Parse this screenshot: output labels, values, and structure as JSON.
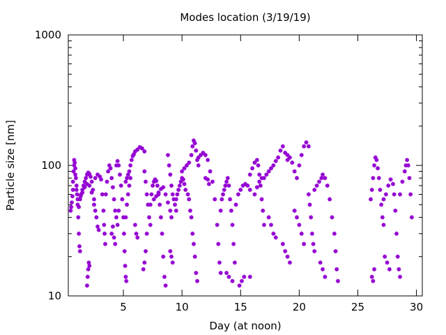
{
  "chart_data": {
    "type": "scatter",
    "title": "Modes location (3/19/19)",
    "xlabel": "Day (at noon)",
    "ylabel": "Particle size [nm]",
    "xlim": [
      0.3,
      30.5
    ],
    "ylim": [
      10,
      1000
    ],
    "yscale": "log",
    "grid": false,
    "legend": "none",
    "marker": "star",
    "color": "#9400d3",
    "x_ticks": [
      5,
      10,
      15,
      20,
      25,
      30
    ],
    "x_tick_labels": [
      "5",
      "10",
      "15",
      "20",
      "25",
      "30"
    ],
    "y_ticks": [
      10,
      100,
      1000
    ],
    "y_tick_labels": [
      "10",
      "100",
      "1000"
    ],
    "series": [
      {
        "points": [
          [
            0.5,
            45
          ],
          [
            0.6,
            52
          ],
          [
            0.7,
            65
          ],
          [
            0.75,
            90
          ],
          [
            0.8,
            110
          ],
          [
            0.85,
            105
          ],
          [
            0.9,
            95
          ],
          [
            0.95,
            80
          ],
          [
            1.0,
            70
          ],
          [
            1.05,
            60
          ],
          [
            1.1,
            50
          ],
          [
            1.15,
            40
          ],
          [
            1.2,
            30
          ],
          [
            1.25,
            24
          ],
          [
            1.3,
            22
          ],
          [
            0.55,
            48
          ],
          [
            0.65,
            58
          ],
          [
            0.7,
            75
          ],
          [
            0.8,
            100
          ],
          [
            0.9,
            85
          ],
          [
            1.0,
            65
          ],
          [
            1.1,
            55
          ],
          [
            1.2,
            48
          ],
          [
            1.3,
            55
          ],
          [
            1.4,
            60
          ],
          [
            1.5,
            65
          ],
          [
            1.6,
            70
          ],
          [
            1.7,
            75
          ],
          [
            1.8,
            80
          ],
          [
            1.9,
            85
          ],
          [
            2.0,
            88
          ],
          [
            2.1,
            86
          ],
          [
            2.2,
            82
          ],
          [
            2.3,
            75
          ],
          [
            2.4,
            65
          ],
          [
            2.5,
            55
          ],
          [
            2.6,
            45
          ],
          [
            1.9,
            12
          ],
          [
            1.95,
            14
          ],
          [
            2.0,
            16
          ],
          [
            2.05,
            18
          ],
          [
            2.1,
            17
          ],
          [
            1.35,
            58
          ],
          [
            1.5,
            62
          ],
          [
            1.7,
            68
          ],
          [
            1.9,
            72
          ],
          [
            2.1,
            70
          ],
          [
            2.3,
            62
          ],
          [
            2.5,
            50
          ],
          [
            2.7,
            40
          ],
          [
            2.8,
            34
          ],
          [
            2.9,
            32
          ],
          [
            2.6,
            80
          ],
          [
            2.8,
            85
          ],
          [
            3.0,
            82
          ],
          [
            3.1,
            78
          ],
          [
            3.2,
            60
          ],
          [
            3.3,
            45
          ],
          [
            3.35,
            35
          ],
          [
            3.4,
            30
          ],
          [
            3.45,
            25
          ],
          [
            3.5,
            60
          ],
          [
            3.6,
            75
          ],
          [
            3.7,
            90
          ],
          [
            3.8,
            100
          ],
          [
            3.9,
            95
          ],
          [
            4.0,
            80
          ],
          [
            4.1,
            68
          ],
          [
            4.2,
            55
          ],
          [
            4.3,
            45
          ],
          [
            4.4,
            40
          ],
          [
            4.4,
            100
          ],
          [
            4.5,
            108
          ],
          [
            4.6,
            100
          ],
          [
            4.7,
            85
          ],
          [
            4.8,
            70
          ],
          [
            4.9,
            55
          ],
          [
            5.0,
            40
          ],
          [
            5.05,
            30
          ],
          [
            5.1,
            22
          ],
          [
            5.15,
            17
          ],
          [
            5.2,
            14
          ],
          [
            5.25,
            13
          ],
          [
            4.0,
            30
          ],
          [
            4.1,
            34
          ],
          [
            4.2,
            28
          ],
          [
            4.3,
            25
          ],
          [
            4.5,
            35
          ],
          [
            4.6,
            45
          ],
          [
            5.2,
            75
          ],
          [
            5.3,
            80
          ],
          [
            5.4,
            85
          ],
          [
            5.5,
            90
          ],
          [
            5.6,
            100
          ],
          [
            5.7,
            110
          ],
          [
            5.8,
            118
          ],
          [
            5.9,
            122
          ],
          [
            6.0,
            128
          ],
          [
            6.2,
            132
          ],
          [
            6.4,
            138
          ],
          [
            6.6,
            135
          ],
          [
            6.8,
            128
          ],
          [
            5.4,
            60
          ],
          [
            5.5,
            70
          ],
          [
            5.6,
            80
          ],
          [
            5.3,
            50
          ],
          [
            5.2,
            40
          ],
          [
            6.0,
            35
          ],
          [
            6.1,
            30
          ],
          [
            6.2,
            28
          ],
          [
            6.8,
            90
          ],
          [
            6.9,
            75
          ],
          [
            7.0,
            60
          ],
          [
            7.1,
            50
          ],
          [
            7.2,
            40
          ],
          [
            7.3,
            35
          ],
          [
            7.0,
            30
          ],
          [
            6.9,
            22
          ],
          [
            6.8,
            18
          ],
          [
            6.7,
            16
          ],
          [
            7.3,
            50
          ],
          [
            7.4,
            60
          ],
          [
            7.5,
            70
          ],
          [
            7.6,
            75
          ],
          [
            7.7,
            78
          ],
          [
            7.8,
            76
          ],
          [
            7.9,
            70
          ],
          [
            8.0,
            60
          ],
          [
            8.1,
            50
          ],
          [
            8.2,
            40
          ],
          [
            8.3,
            30
          ],
          [
            8.4,
            20
          ],
          [
            8.5,
            14
          ],
          [
            8.6,
            12
          ],
          [
            7.6,
            55
          ],
          [
            7.8,
            58
          ],
          [
            8.0,
            62
          ],
          [
            8.2,
            66
          ],
          [
            8.4,
            68
          ],
          [
            8.6,
            60
          ],
          [
            8.8,
            52
          ],
          [
            9.0,
            45
          ],
          [
            9.1,
            40
          ],
          [
            8.8,
            120
          ],
          [
            8.9,
            100
          ],
          [
            9.0,
            85
          ],
          [
            9.1,
            70
          ],
          [
            9.2,
            60
          ],
          [
            9.3,
            55
          ],
          [
            9.4,
            50
          ],
          [
            9.5,
            45
          ],
          [
            9.5,
            55
          ],
          [
            9.6,
            60
          ],
          [
            9.7,
            65
          ],
          [
            9.8,
            70
          ],
          [
            9.9,
            75
          ],
          [
            10.0,
            80
          ],
          [
            10.1,
            78
          ],
          [
            10.2,
            72
          ],
          [
            10.3,
            65
          ],
          [
            9.0,
            22
          ],
          [
            9.1,
            20
          ],
          [
            9.2,
            18
          ],
          [
            10.0,
            90
          ],
          [
            10.2,
            95
          ],
          [
            10.4,
            100
          ],
          [
            10.6,
            105
          ],
          [
            10.8,
            120
          ],
          [
            10.9,
            140
          ],
          [
            11.0,
            155
          ],
          [
            11.1,
            148
          ],
          [
            11.2,
            130
          ],
          [
            11.3,
            110
          ],
          [
            11.4,
            100
          ],
          [
            10.5,
            60
          ],
          [
            10.6,
            55
          ],
          [
            10.7,
            45
          ],
          [
            10.8,
            40
          ],
          [
            10.9,
            30
          ],
          [
            11.0,
            25
          ],
          [
            11.1,
            20
          ],
          [
            11.2,
            15
          ],
          [
            11.3,
            13
          ],
          [
            11.4,
            115
          ],
          [
            11.6,
            120
          ],
          [
            11.8,
            125
          ],
          [
            12.0,
            120
          ],
          [
            12.2,
            110
          ],
          [
            12.4,
            90
          ],
          [
            12.6,
            75
          ],
          [
            12.8,
            55
          ],
          [
            13.0,
            35
          ],
          [
            13.1,
            25
          ],
          [
            13.2,
            18
          ],
          [
            13.3,
            15
          ],
          [
            12.0,
            80
          ],
          [
            12.2,
            78
          ],
          [
            12.3,
            72
          ],
          [
            13.3,
            45
          ],
          [
            13.4,
            55
          ],
          [
            13.5,
            60
          ],
          [
            13.6,
            65
          ],
          [
            13.7,
            70
          ],
          [
            13.8,
            75
          ],
          [
            13.9,
            80
          ],
          [
            14.0,
            70
          ],
          [
            14.1,
            55
          ],
          [
            14.2,
            45
          ],
          [
            14.3,
            35
          ],
          [
            14.4,
            25
          ],
          [
            14.5,
            18
          ],
          [
            13.8,
            15
          ],
          [
            14.0,
            14
          ],
          [
            14.3,
            13
          ],
          [
            14.6,
            50
          ],
          [
            14.8,
            60
          ],
          [
            15.0,
            65
          ],
          [
            15.2,
            70
          ],
          [
            15.4,
            72
          ],
          [
            15.6,
            70
          ],
          [
            15.8,
            65
          ],
          [
            14.9,
            12
          ],
          [
            15.1,
            13
          ],
          [
            15.3,
            14
          ],
          [
            15.8,
            14
          ],
          [
            15.8,
            85
          ],
          [
            16.0,
            95
          ],
          [
            16.2,
            105
          ],
          [
            16.4,
            110
          ],
          [
            16.5,
            100
          ],
          [
            16.6,
            85
          ],
          [
            16.7,
            70
          ],
          [
            16.8,
            55
          ],
          [
            16.9,
            45
          ],
          [
            17.0,
            35
          ],
          [
            16.2,
            60
          ],
          [
            16.4,
            68
          ],
          [
            16.6,
            75
          ],
          [
            16.8,
            80
          ],
          [
            17.0,
            80
          ],
          [
            17.2,
            85
          ],
          [
            17.4,
            90
          ],
          [
            17.6,
            95
          ],
          [
            17.8,
            100
          ],
          [
            18.0,
            108
          ],
          [
            18.2,
            115
          ],
          [
            18.4,
            130
          ],
          [
            18.6,
            140
          ],
          [
            18.8,
            125
          ],
          [
            19.0,
            110
          ],
          [
            17.4,
            40
          ],
          [
            17.6,
            35
          ],
          [
            17.8,
            30
          ],
          [
            18.0,
            28
          ],
          [
            18.6,
            25
          ],
          [
            18.8,
            22
          ],
          [
            19.0,
            20
          ],
          [
            19.2,
            18
          ],
          [
            19.0,
            120
          ],
          [
            19.2,
            115
          ],
          [
            19.4,
            105
          ],
          [
            19.6,
            90
          ],
          [
            19.8,
            80
          ],
          [
            20.0,
            100
          ],
          [
            20.2,
            120
          ],
          [
            20.4,
            140
          ],
          [
            20.6,
            150
          ],
          [
            20.8,
            140
          ],
          [
            19.6,
            45
          ],
          [
            19.8,
            40
          ],
          [
            20.0,
            35
          ],
          [
            20.2,
            30
          ],
          [
            20.4,
            25
          ],
          [
            20.8,
            60
          ],
          [
            20.9,
            50
          ],
          [
            21.0,
            40
          ],
          [
            21.1,
            30
          ],
          [
            21.2,
            25
          ],
          [
            21.3,
            22
          ],
          [
            21.3,
            65
          ],
          [
            21.5,
            70
          ],
          [
            21.7,
            75
          ],
          [
            21.9,
            80
          ],
          [
            22.0,
            85
          ],
          [
            22.2,
            80
          ],
          [
            22.4,
            70
          ],
          [
            22.6,
            55
          ],
          [
            22.8,
            40
          ],
          [
            23.0,
            30
          ],
          [
            23.1,
            22
          ],
          [
            23.2,
            16
          ],
          [
            23.3,
            13
          ],
          [
            21.8,
            18
          ],
          [
            22.0,
            16
          ],
          [
            22.2,
            14
          ],
          [
            26.1,
            55
          ],
          [
            26.2,
            65
          ],
          [
            26.3,
            80
          ],
          [
            26.4,
            100
          ],
          [
            26.5,
            115
          ],
          [
            26.6,
            110
          ],
          [
            26.7,
            95
          ],
          [
            26.8,
            80
          ],
          [
            26.9,
            65
          ],
          [
            27.0,
            50
          ],
          [
            27.1,
            40
          ],
          [
            27.2,
            35
          ],
          [
            26.2,
            14
          ],
          [
            26.3,
            13
          ],
          [
            26.4,
            16
          ],
          [
            27.2,
            55
          ],
          [
            27.4,
            60
          ],
          [
            27.6,
            70
          ],
          [
            27.8,
            78
          ],
          [
            28.0,
            72
          ],
          [
            28.1,
            60
          ],
          [
            28.2,
            45
          ],
          [
            28.3,
            30
          ],
          [
            28.4,
            20
          ],
          [
            28.5,
            16
          ],
          [
            28.6,
            14
          ],
          [
            27.3,
            20
          ],
          [
            27.5,
            18
          ],
          [
            27.7,
            16
          ],
          [
            28.6,
            60
          ],
          [
            28.8,
            75
          ],
          [
            29.0,
            90
          ],
          [
            29.1,
            100
          ],
          [
            29.2,
            110
          ],
          [
            29.3,
            100
          ],
          [
            29.4,
            80
          ],
          [
            29.5,
            60
          ],
          [
            29.6,
            40
          ]
        ]
      }
    ]
  }
}
